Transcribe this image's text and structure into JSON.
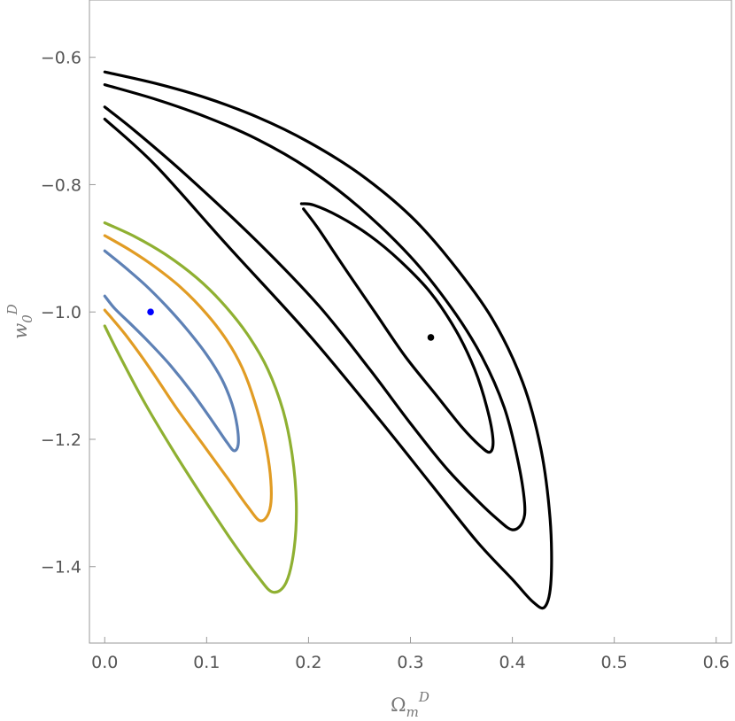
{
  "chart_data": {
    "type": "contour",
    "title": "",
    "xlabel": {
      "base": "Ω",
      "sub": "m",
      "sup": "D"
    },
    "ylabel": {
      "base": "w",
      "sub": "0",
      "sup": "D"
    },
    "xlim": [
      -0.015,
      0.615
    ],
    "ylim": [
      -1.52,
      -0.51
    ],
    "grid": false,
    "x_ticks": [
      {
        "value": 0.0,
        "label": "0.0"
      },
      {
        "value": 0.1,
        "label": "0.1"
      },
      {
        "value": 0.2,
        "label": "0.2"
      },
      {
        "value": 0.3,
        "label": "0.3"
      },
      {
        "value": 0.4,
        "label": "0.4"
      },
      {
        "value": 0.5,
        "label": "0.5"
      },
      {
        "value": 0.6,
        "label": "0.6"
      }
    ],
    "y_ticks": [
      {
        "value": -1.4,
        "label": "-1.4"
      },
      {
        "value": -1.2,
        "label": "-1.2"
      },
      {
        "value": -1.0,
        "label": "-1.0"
      },
      {
        "value": -0.8,
        "label": "-0.8"
      },
      {
        "value": -0.6,
        "label": "-0.6"
      }
    ],
    "series": [
      {
        "group": "left",
        "level": 1,
        "color": "#5e81b5",
        "points": [
          [
            0,
            -0.904
          ],
          [
            0.02,
            -0.93
          ],
          [
            0.04,
            -0.958
          ],
          [
            0.06,
            -0.99
          ],
          [
            0.08,
            -1.026
          ],
          [
            0.1,
            -1.067
          ],
          [
            0.115,
            -1.106
          ],
          [
            0.125,
            -1.145
          ],
          [
            0.13,
            -1.18
          ],
          [
            0.131,
            -1.208
          ],
          [
            0.127,
            -1.218
          ],
          [
            0.12,
            -1.205
          ],
          [
            0.105,
            -1.17
          ],
          [
            0.085,
            -1.125
          ],
          [
            0.065,
            -1.085
          ],
          [
            0.045,
            -1.05
          ],
          [
            0.025,
            -1.018
          ],
          [
            0.01,
            -0.995
          ],
          [
            0,
            -0.975
          ]
        ]
      },
      {
        "group": "left",
        "level": 2,
        "color": "#e19c24",
        "points": [
          [
            0,
            -0.88
          ],
          [
            0.025,
            -0.903
          ],
          [
            0.05,
            -0.93
          ],
          [
            0.075,
            -0.962
          ],
          [
            0.1,
            -1.003
          ],
          [
            0.12,
            -1.045
          ],
          [
            0.135,
            -1.088
          ],
          [
            0.147,
            -1.14
          ],
          [
            0.157,
            -1.2
          ],
          [
            0.163,
            -1.265
          ],
          [
            0.162,
            -1.31
          ],
          [
            0.153,
            -1.328
          ],
          [
            0.14,
            -1.305
          ],
          [
            0.12,
            -1.26
          ],
          [
            0.095,
            -1.205
          ],
          [
            0.07,
            -1.15
          ],
          [
            0.045,
            -1.09
          ],
          [
            0.02,
            -1.035
          ],
          [
            0,
            -0.997
          ]
        ]
      },
      {
        "group": "left",
        "level": 3,
        "color": "#8fb032",
        "points": [
          [
            0,
            -0.86
          ],
          [
            0.03,
            -0.882
          ],
          [
            0.06,
            -0.91
          ],
          [
            0.09,
            -0.946
          ],
          [
            0.115,
            -0.985
          ],
          [
            0.14,
            -1.035
          ],
          [
            0.16,
            -1.09
          ],
          [
            0.175,
            -1.155
          ],
          [
            0.184,
            -1.225
          ],
          [
            0.188,
            -1.3
          ],
          [
            0.186,
            -1.37
          ],
          [
            0.178,
            -1.425
          ],
          [
            0.165,
            -1.44
          ],
          [
            0.15,
            -1.415
          ],
          [
            0.125,
            -1.36
          ],
          [
            0.1,
            -1.3
          ],
          [
            0.07,
            -1.225
          ],
          [
            0.04,
            -1.145
          ],
          [
            0.015,
            -1.07
          ],
          [
            0,
            -1.022
          ]
        ]
      },
      {
        "group": "right",
        "level": 1,
        "color": "#000000",
        "points": [
          [
            0.193,
            -0.83
          ],
          [
            0.205,
            -0.832
          ],
          [
            0.23,
            -0.85
          ],
          [
            0.26,
            -0.88
          ],
          [
            0.29,
            -0.92
          ],
          [
            0.32,
            -0.97
          ],
          [
            0.345,
            -1.03
          ],
          [
            0.363,
            -1.09
          ],
          [
            0.375,
            -1.15
          ],
          [
            0.381,
            -1.2
          ],
          [
            0.378,
            -1.22
          ],
          [
            0.368,
            -1.21
          ],
          [
            0.35,
            -1.18
          ],
          [
            0.325,
            -1.13
          ],
          [
            0.295,
            -1.07
          ],
          [
            0.265,
            -1.0
          ],
          [
            0.235,
            -0.93
          ],
          [
            0.21,
            -0.87
          ],
          [
            0.195,
            -0.838
          ]
        ]
      },
      {
        "group": "right",
        "level": 2,
        "color": "#000000",
        "points": [
          [
            0,
            -0.643
          ],
          [
            0.05,
            -0.666
          ],
          [
            0.1,
            -0.694
          ],
          [
            0.15,
            -0.729
          ],
          [
            0.2,
            -0.775
          ],
          [
            0.25,
            -0.836
          ],
          [
            0.3,
            -0.913
          ],
          [
            0.34,
            -0.993
          ],
          [
            0.37,
            -1.07
          ],
          [
            0.392,
            -1.15
          ],
          [
            0.405,
            -1.23
          ],
          [
            0.412,
            -1.3
          ],
          [
            0.41,
            -1.33
          ],
          [
            0.4,
            -1.342
          ],
          [
            0.385,
            -1.325
          ],
          [
            0.365,
            -1.295
          ],
          [
            0.335,
            -1.245
          ],
          [
            0.3,
            -1.175
          ],
          [
            0.26,
            -1.09
          ],
          [
            0.21,
            -0.99
          ],
          [
            0.15,
            -0.89
          ],
          [
            0.08,
            -0.785
          ],
          [
            0.03,
            -0.716
          ],
          [
            0,
            -0.678
          ]
        ]
      },
      {
        "group": "right",
        "level": 3,
        "color": "#000000",
        "points": [
          [
            0,
            -0.623
          ],
          [
            0.05,
            -0.641
          ],
          [
            0.1,
            -0.664
          ],
          [
            0.15,
            -0.694
          ],
          [
            0.2,
            -0.733
          ],
          [
            0.25,
            -0.783
          ],
          [
            0.3,
            -0.849
          ],
          [
            0.34,
            -0.921
          ],
          [
            0.38,
            -1.01
          ],
          [
            0.41,
            -1.11
          ],
          [
            0.428,
            -1.215
          ],
          [
            0.437,
            -1.325
          ],
          [
            0.438,
            -1.42
          ],
          [
            0.432,
            -1.463
          ],
          [
            0.42,
            -1.455
          ],
          [
            0.4,
            -1.42
          ],
          [
            0.365,
            -1.36
          ],
          [
            0.32,
            -1.27
          ],
          [
            0.27,
            -1.17
          ],
          [
            0.2,
            -1.035
          ],
          [
            0.12,
            -0.895
          ],
          [
            0.05,
            -0.77
          ],
          [
            0,
            -0.697
          ]
        ]
      }
    ],
    "points": [
      {
        "name": "left-best-fit",
        "x": 0.045,
        "y": -1.0,
        "color": "#0000ff"
      },
      {
        "name": "right-best-fit",
        "x": 0.32,
        "y": -1.04,
        "color": "#000000"
      }
    ]
  }
}
